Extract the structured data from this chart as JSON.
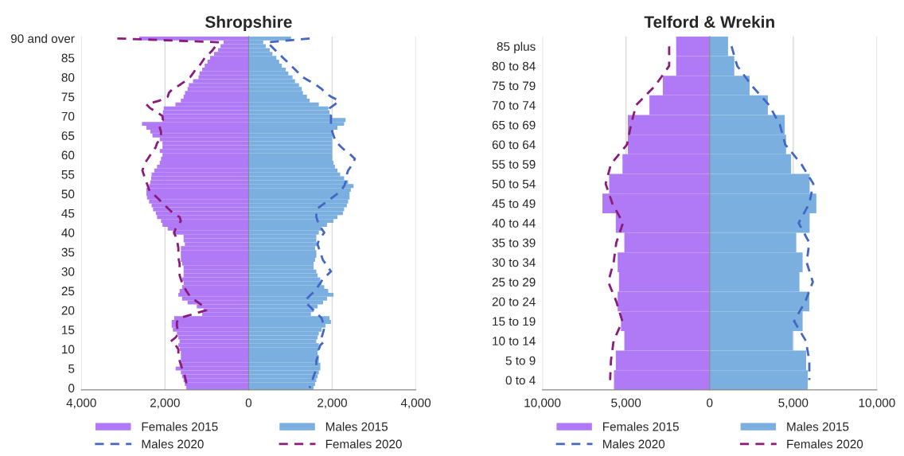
{
  "chart_data": [
    {
      "type": "bar",
      "orientation": "horizontal",
      "stacked": true,
      "title": "Shropshire",
      "categories": [
        "90 and over",
        null,
        null,
        null,
        null,
        "85",
        null,
        null,
        null,
        null,
        "80",
        null,
        null,
        null,
        null,
        "75",
        null,
        null,
        null,
        null,
        "70",
        null,
        null,
        null,
        null,
        "65",
        null,
        null,
        null,
        null,
        "60",
        null,
        null,
        null,
        null,
        "55",
        null,
        null,
        null,
        null,
        "50",
        null,
        null,
        null,
        null,
        "45",
        null,
        null,
        null,
        null,
        "40",
        null,
        null,
        null,
        null,
        "35",
        null,
        null,
        null,
        null,
        "30",
        null,
        null,
        null,
        null,
        "25",
        null,
        null,
        null,
        null,
        "20",
        null,
        null,
        null,
        null,
        "15",
        null,
        null,
        null,
        null,
        "10",
        null,
        null,
        null,
        null,
        "5",
        null,
        null,
        null,
        null,
        "0"
      ],
      "series": [
        {
          "name": "Females 2015",
          "color": "#b07af7",
          "values": [
            -2615,
            -600,
            -670,
            -730,
            -825,
            -920,
            -985,
            -1050,
            -1110,
            -1175,
            -1200,
            -1330,
            -1430,
            -1460,
            -1520,
            -1555,
            -1620,
            -1750,
            -2030,
            -2050,
            -2060,
            -2060,
            -2550,
            -2445,
            -2350,
            -2300,
            -2125,
            -2060,
            -2060,
            -2125,
            -2060,
            -2095,
            -2125,
            -2190,
            -2255,
            -2320,
            -2330,
            -2350,
            -2380,
            -2445,
            -2445,
            -2430,
            -2380,
            -2320,
            -2285,
            -2220,
            -2190,
            -2095,
            -2060,
            -1935,
            -1810,
            -1555,
            -1555,
            -1525,
            -1620,
            -1620,
            -1620,
            -1620,
            -1590,
            -1555,
            -1555,
            -1555,
            -1590,
            -1555,
            -1590,
            -1650,
            -1680,
            -1590,
            -1460,
            -1240,
            -1080,
            -1110,
            -1780,
            -1840,
            -1840,
            -1810,
            -1715,
            -1680,
            -1650,
            -1680,
            -1650,
            -1620,
            -1620,
            -1620,
            -1650,
            -1745,
            -1620,
            -1590,
            -1555,
            -1525,
            -1490
          ]
        },
        {
          "name": "Males 2015",
          "color": "#7aafe0",
          "values": [
            1015,
            350,
            410,
            505,
            570,
            665,
            730,
            795,
            890,
            950,
            1050,
            1110,
            1205,
            1270,
            1300,
            1395,
            1460,
            1680,
            1905,
            1935,
            1970,
            2320,
            2285,
            2125,
            2030,
            2000,
            2000,
            2000,
            2000,
            2000,
            2000,
            2000,
            2030,
            2065,
            2125,
            2190,
            2285,
            2380,
            2510,
            2445,
            2415,
            2415,
            2380,
            2350,
            2285,
            2255,
            2125,
            2030,
            1875,
            1745,
            1680,
            1620,
            1620,
            1650,
            1590,
            1620,
            1620,
            1590,
            1555,
            1555,
            1620,
            1650,
            1715,
            1745,
            1810,
            1905,
            2030,
            1875,
            1780,
            1650,
            1555,
            1490,
            1935,
            1970,
            1840,
            1745,
            1680,
            1650,
            1620,
            1680,
            1680,
            1650,
            1680,
            1680,
            1715,
            1715,
            1680,
            1650,
            1620,
            1590,
            1555
          ]
        },
        {
          "name": "Males 2020",
          "type": "line",
          "color": "#4466c4",
          "line_style": "dashed",
          "values": [
            1460,
            445,
            540,
            635,
            730,
            825,
            920,
            1015,
            1110,
            1205,
            1300,
            1460,
            1620,
            1745,
            1840,
            1970,
            2160,
            2065,
            1935,
            1970,
            1970,
            1970,
            1970,
            2000,
            2000,
            2030,
            2065,
            2125,
            2220,
            2320,
            2445,
            2540,
            2510,
            2445,
            2380,
            2350,
            2350,
            2320,
            2285,
            2220,
            2125,
            2000,
            1875,
            1745,
            1620,
            1620,
            1620,
            1650,
            1680,
            1745,
            1810,
            1745,
            1680,
            1650,
            1680,
            1715,
            1745,
            1775,
            1840,
            1905,
            1970,
            1875,
            1775,
            1715,
            1650,
            1590,
            1490,
            1395,
            1365,
            1460,
            1555,
            1650,
            1745,
            1775,
            1810,
            1800,
            1775,
            1745,
            1810,
            1715,
            1680,
            1680,
            1650,
            1620,
            1620,
            1620,
            1590,
            1555,
            1525,
            1490,
            1460
          ]
        },
        {
          "name": "Females 2020",
          "type": "line",
          "color": "#8b1a7a",
          "line_style": "dashed",
          "values": [
            -3140,
            -700,
            -790,
            -860,
            -950,
            -1050,
            -1110,
            -1175,
            -1270,
            -1330,
            -1400,
            -1520,
            -1650,
            -1810,
            -1905,
            -1935,
            -2125,
            -2445,
            -2350,
            -2190,
            -2060,
            -2050,
            -2095,
            -2125,
            -2095,
            -2095,
            -2125,
            -2190,
            -2220,
            -2285,
            -2350,
            -2410,
            -2475,
            -2510,
            -2540,
            -2510,
            -2475,
            -2445,
            -2410,
            -2380,
            -2285,
            -2190,
            -2095,
            -2000,
            -1905,
            -1810,
            -1650,
            -1620,
            -1680,
            -1745,
            -1780,
            -1745,
            -1715,
            -1695,
            -1680,
            -1680,
            -1680,
            -1670,
            -1650,
            -1650,
            -1650,
            -1650,
            -1620,
            -1590,
            -1540,
            -1490,
            -1430,
            -1335,
            -1205,
            -1080,
            -1015,
            -1335,
            -1650,
            -1715,
            -1715,
            -1695,
            -1680,
            -1745,
            -1860,
            -1745,
            -1680,
            -1680,
            -1680,
            -1650,
            -1620,
            -1590,
            -1555,
            -1525,
            -1505,
            -1480,
            -1440
          ]
        }
      ],
      "xlim": [
        -4000,
        4000
      ],
      "xticks": [
        {
          "value": -4000,
          "label": "4,000"
        },
        {
          "value": -2000,
          "label": "2,000"
        },
        0,
        {
          "value": 2000,
          "label": "2,000"
        },
        {
          "value": 4000,
          "label": "4,000"
        }
      ],
      "grid": "x",
      "legend": "bottom",
      "marker": "none"
    },
    {
      "type": "bar",
      "orientation": "horizontal",
      "stacked": true,
      "title": "Telford & Wrekin",
      "categories": [
        "85 plus",
        "80 to 84",
        "75 to 79",
        "70 to 74",
        "65 to 69",
        "60 to 64",
        "55 to 59",
        "50 to 54",
        "45 to 49",
        "40 to 44",
        "35 to 39",
        "30 to 34",
        "25 to 29",
        "20 to 24",
        "15 to 19",
        "10 to 14",
        "5 to 9",
        "0 to 4"
      ],
      "series": [
        {
          "name": "Females 2015",
          "color": "#b07af7",
          "values": [
            -2000,
            -2000,
            -2800,
            -3600,
            -4890,
            -4890,
            -5210,
            -6010,
            -6410,
            -5610,
            -5100,
            -5500,
            -5420,
            -5500,
            -5300,
            -5100,
            -5610,
            -5720
          ]
        },
        {
          "name": "Males 2015",
          "color": "#7aafe0",
          "values": [
            1100,
            1475,
            2390,
            3480,
            4490,
            4570,
            4870,
            5980,
            6380,
            5980,
            5180,
            5560,
            5370,
            5960,
            5560,
            4970,
            5770,
            5870
          ]
        },
        {
          "name": "Males 2020",
          "type": "line",
          "color": "#4466c4",
          "line_style": "dashed",
          "values": [
            1310,
            1650,
            2515,
            3560,
            4200,
            4520,
            5480,
            6200,
            5960,
            5320,
            5960,
            5800,
            6170,
            5720,
            5050,
            5750,
            5960,
            5960
          ]
        },
        {
          "name": "Females 2020",
          "type": "line",
          "color": "#8b1a7a",
          "line_style": "dashed",
          "values": [
            -2420,
            -2420,
            -3250,
            -4400,
            -4700,
            -4940,
            -5900,
            -6220,
            -5820,
            -5180,
            -5580,
            -5740,
            -6060,
            -5580,
            -5220,
            -5740,
            -5900,
            -5950
          ]
        }
      ],
      "xlim": [
        -10000,
        10000
      ],
      "xticks": [
        {
          "value": -10000,
          "label": "10,000"
        },
        {
          "value": -5000,
          "label": "5,000"
        },
        0,
        {
          "value": 5000,
          "label": "5,000"
        },
        {
          "value": 10000,
          "label": "10,000"
        }
      ],
      "grid": "x",
      "legend": "bottom",
      "marker": "none"
    }
  ]
}
